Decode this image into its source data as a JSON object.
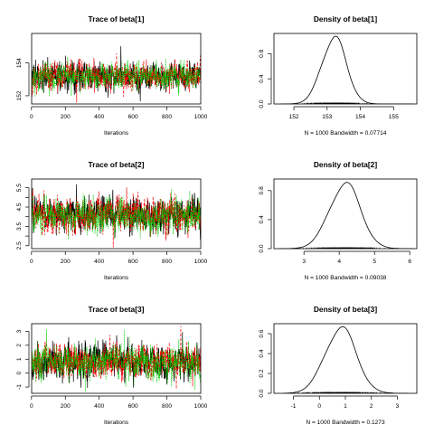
{
  "colors": {
    "chain_1": "#000000",
    "chain_2": "#ff0000",
    "chain_3": "#00cd00",
    "axis": "#000000",
    "background": "#ffffff"
  },
  "chart_data": [
    {
      "type": "line",
      "title": "Trace of beta[1]",
      "xlabel": "Iterations",
      "ylabel": "",
      "xlim": [
        1,
        1000
      ],
      "ylim": [
        151.5,
        155.8
      ],
      "xticks": [
        "0",
        "200",
        "400",
        "600",
        "800",
        "1000"
      ],
      "yticks": [
        "152",
        "154"
      ],
      "trace": {
        "n": 1000,
        "mean": 153.2,
        "sd": 0.4
      },
      "series": [
        {
          "color": "#000000",
          "linestyle": "solid"
        },
        {
          "color": "#ff0000",
          "linestyle": "dashed"
        },
        {
          "color": "#00cd00",
          "linestyle": "dotted"
        }
      ]
    },
    {
      "type": "area",
      "title": "Density of beta[1]",
      "xlabel": "N = 1000   Bandwidth = 0.07714",
      "ylabel": "",
      "xlim": [
        151.4,
        155.7
      ],
      "ylim": [
        0,
        1.12
      ],
      "xticks": [
        "152",
        "153",
        "154",
        "155"
      ],
      "yticks": [
        "0.0",
        "0.4",
        "0.8"
      ],
      "density": {
        "mean": 153.2,
        "sd": 0.37,
        "peak": 1.06,
        "support": [
          151.6,
          155.6
        ]
      },
      "rug": true
    },
    {
      "type": "line",
      "title": "Trace of beta[2]",
      "xlabel": "Iterations",
      "ylabel": "",
      "xlim": [
        1,
        1000
      ],
      "ylim": [
        2.35,
        5.95
      ],
      "xticks": [
        "0",
        "200",
        "400",
        "600",
        "800",
        "1000"
      ],
      "yticks": [
        "2.5",
        "3.5",
        "4.5",
        "5.5"
      ],
      "yticks_minor": [
        "3.0",
        "4.0",
        "5.0"
      ],
      "trace": {
        "n": 1000,
        "mean": 4.1,
        "sd": 0.43
      },
      "series": [
        {
          "color": "#000000",
          "linestyle": "solid"
        },
        {
          "color": "#ff0000",
          "linestyle": "dashed"
        },
        {
          "color": "#00cd00",
          "linestyle": "dotted"
        }
      ]
    },
    {
      "type": "area",
      "title": "Density of beta[2]",
      "xlabel": "N = 1000   Bandwidth = 0.09038",
      "ylabel": "",
      "xlim": [
        2.15,
        6.2
      ],
      "ylim": [
        0,
        0.96
      ],
      "xticks": [
        "3",
        "4",
        "5",
        "6"
      ],
      "yticks": [
        "0.0",
        "0.4",
        "0.8"
      ],
      "density": {
        "mean": 4.15,
        "sd": 0.44,
        "peak": 0.9,
        "support": [
          2.3,
          6.1
        ]
      },
      "rug": true
    },
    {
      "type": "line",
      "title": "Trace of beta[3]",
      "xlabel": "Iterations",
      "ylabel": "",
      "xlim": [
        1,
        1000
      ],
      "ylim": [
        -1.45,
        3.55
      ],
      "xticks": [
        "0",
        "200",
        "400",
        "600",
        "800",
        "1000"
      ],
      "yticks": [
        "-1",
        "0",
        "1",
        "2",
        "3"
      ],
      "trace": {
        "n": 1000,
        "mean": 0.8,
        "sd": 0.6
      },
      "series": [
        {
          "color": "#000000",
          "linestyle": "solid"
        },
        {
          "color": "#ff0000",
          "linestyle": "dashed"
        },
        {
          "color": "#00cd00",
          "linestyle": "dotted"
        }
      ]
    },
    {
      "type": "area",
      "title": "Density of beta[3]",
      "xlabel": "N = 1000   Bandwidth = 0.1273",
      "ylabel": "",
      "xlim": [
        -1.75,
        3.75
      ],
      "ylim": [
        0,
        0.7
      ],
      "xticks": [
        "-1",
        "0",
        "1",
        "2",
        "3"
      ],
      "yticks": [
        "0.0",
        "0.2",
        "0.4",
        "0.6"
      ],
      "density": {
        "mean": 0.8,
        "sd": 0.6,
        "peak": 0.66,
        "support": [
          -1.4,
          3.4
        ]
      },
      "rug": true
    }
  ]
}
